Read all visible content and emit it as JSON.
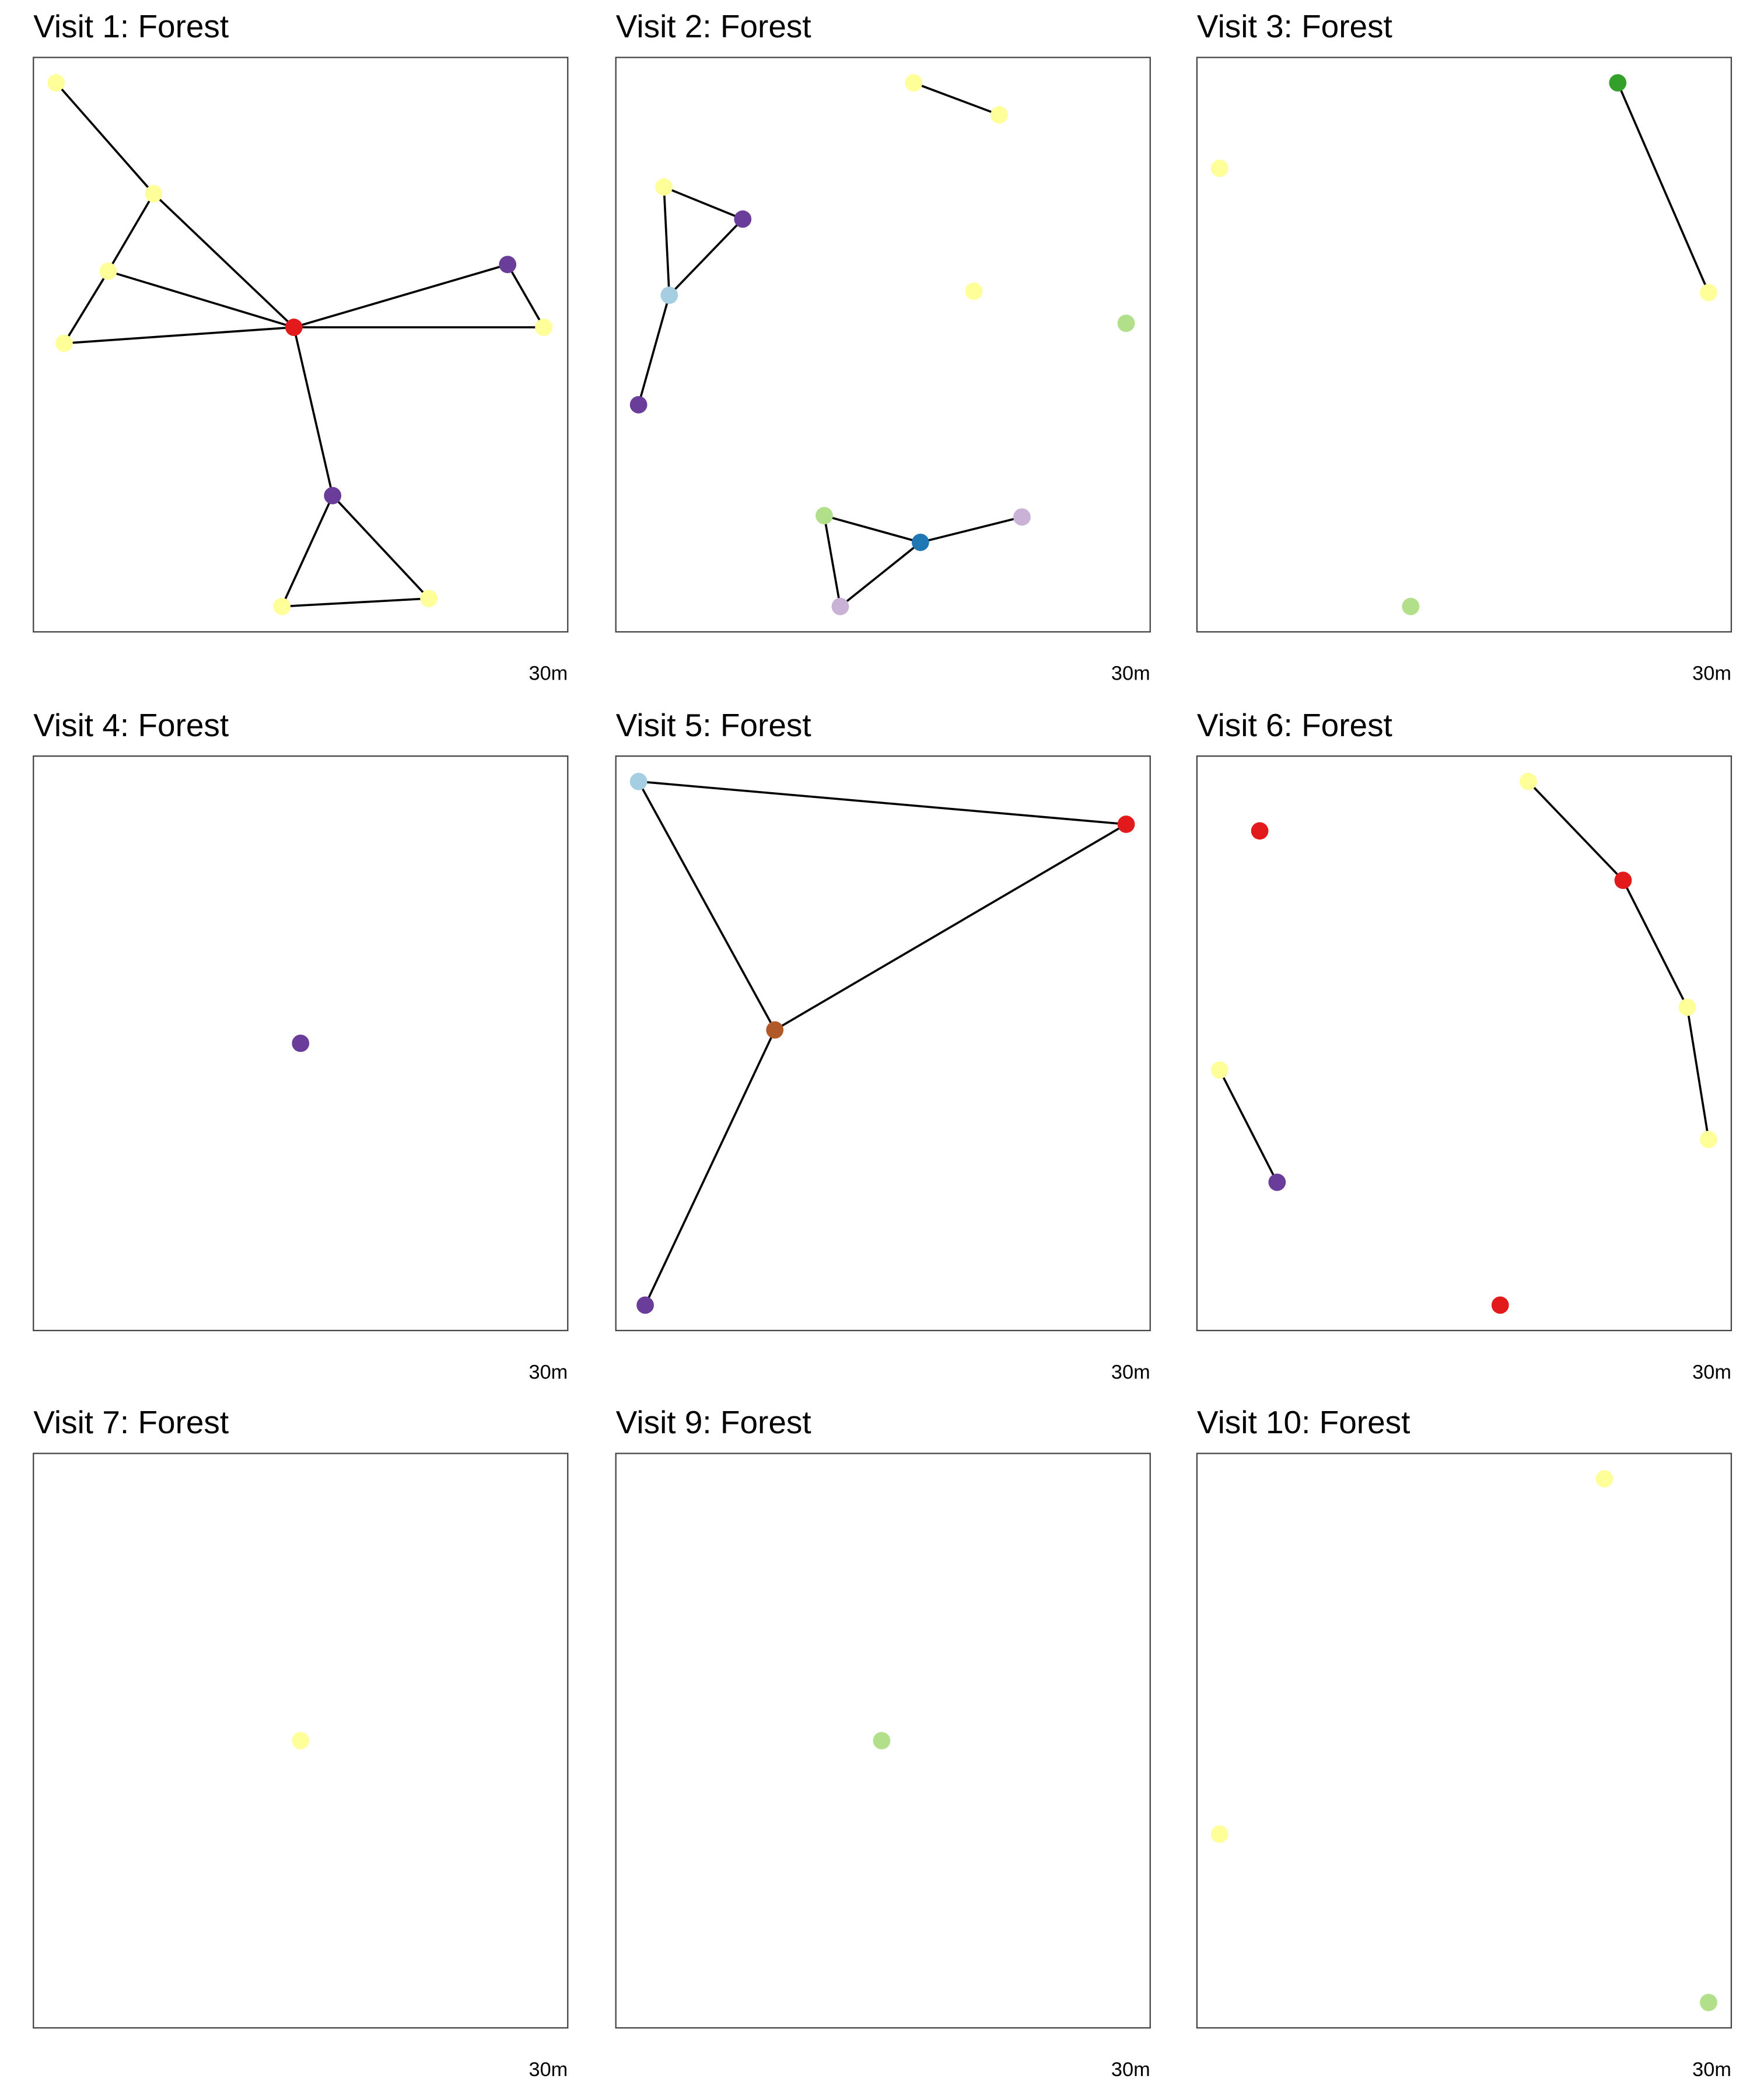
{
  "panels": [
    {
      "title": "Visit 1: Forest",
      "scale": "30m"
    },
    {
      "title": "Visit 2: Forest",
      "scale": "30m"
    },
    {
      "title": "Visit 3: Forest",
      "scale": "30m"
    },
    {
      "title": "Visit 4: Forest",
      "scale": "30m"
    },
    {
      "title": "Visit 5: Forest",
      "scale": "30m"
    },
    {
      "title": "Visit 6: Forest",
      "scale": "30m"
    },
    {
      "title": "Visit 7: Forest",
      "scale": "30m"
    },
    {
      "title": "Visit 9: Forest",
      "scale": "30m"
    },
    {
      "title": "Visit 10: Forest",
      "scale": "30m"
    }
  ]
}
